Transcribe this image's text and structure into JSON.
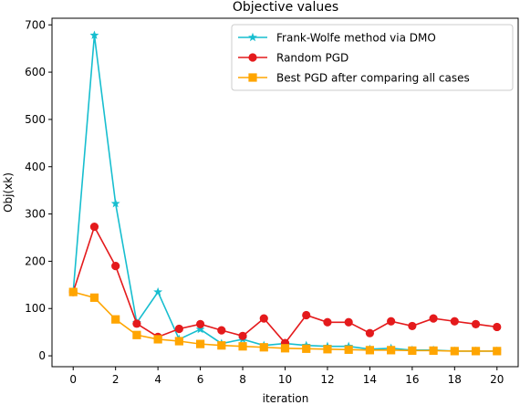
{
  "chart_data": {
    "type": "line",
    "title": "Objective values",
    "xlabel": "iteration",
    "ylabel": "Obj(xk)",
    "xlim": [
      -1,
      21
    ],
    "ylim": [
      -23,
      714
    ],
    "x_ticks": [
      0,
      2,
      4,
      6,
      8,
      10,
      12,
      14,
      16,
      18,
      20
    ],
    "y_ticks": [
      0,
      100,
      200,
      300,
      400,
      500,
      600,
      700
    ],
    "grid": false,
    "legend_position": "top-right",
    "x": [
      0,
      1,
      2,
      3,
      4,
      5,
      6,
      7,
      8,
      9,
      10,
      11,
      12,
      13,
      14,
      15,
      16,
      17,
      18,
      19,
      20
    ],
    "series": [
      {
        "name": "Frank-Wolfe method via DMO",
        "color": "#17becf",
        "marker": "star",
        "values": [
          135,
          678,
          322,
          70,
          135,
          35,
          56,
          26,
          35,
          22,
          26,
          22,
          20,
          20,
          14,
          16,
          12,
          12,
          10,
          10,
          10
        ]
      },
      {
        "name": "Random PGD",
        "color": "#e41a1c",
        "marker": "circle",
        "values": [
          135,
          273,
          190,
          68,
          40,
          57,
          67,
          54,
          42,
          79,
          27,
          86,
          71,
          71,
          48,
          73,
          63,
          79,
          73,
          67,
          61
        ]
      },
      {
        "name": "Best PGD after comparing all cases",
        "color": "#ffa500",
        "marker": "square",
        "values": [
          135,
          123,
          77,
          44,
          35,
          31,
          25,
          22,
          20,
          18,
          16,
          15,
          14,
          13,
          12,
          12,
          11,
          11,
          10,
          10,
          10
        ]
      }
    ]
  }
}
